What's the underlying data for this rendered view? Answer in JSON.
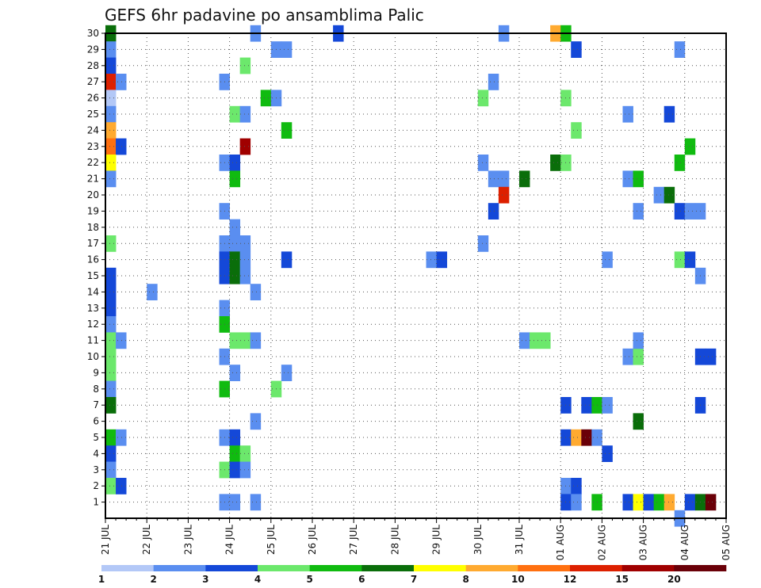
{
  "chart_data": {
    "type": "heatmap",
    "title": "GEFS 6hr padavine po ansamblima Palic",
    "xlabel": "",
    "ylabel": "",
    "x_range": [
      0,
      60
    ],
    "y_range": [
      0,
      30
    ],
    "x_ticks": [
      {
        "x": 0,
        "label": "21 JUL"
      },
      {
        "x": 4,
        "label": "22 JUL"
      },
      {
        "x": 8,
        "label": "23 JUL"
      },
      {
        "x": 12,
        "label": "24 JUL"
      },
      {
        "x": 16,
        "label": "25 JUL"
      },
      {
        "x": 20,
        "label": "26 JUL"
      },
      {
        "x": 24,
        "label": "27 JUL"
      },
      {
        "x": 28,
        "label": "28 JUL"
      },
      {
        "x": 32,
        "label": "29 JUL"
      },
      {
        "x": 36,
        "label": "30 JUL"
      },
      {
        "x": 40,
        "label": "31 JUL"
      },
      {
        "x": 44,
        "label": "01 AUG"
      },
      {
        "x": 48,
        "label": "02 AUG"
      },
      {
        "x": 52,
        "label": "03 AUG"
      },
      {
        "x": 56,
        "label": "04 AUG"
      },
      {
        "x": 60,
        "label": "05 AUG"
      }
    ],
    "y_ticks": [
      1,
      2,
      3,
      4,
      5,
      6,
      7,
      8,
      9,
      10,
      11,
      12,
      13,
      14,
      15,
      16,
      17,
      18,
      19,
      20,
      21,
      22,
      23,
      24,
      25,
      26,
      27,
      28,
      29,
      30
    ],
    "grid": true,
    "colorbar": {
      "labels": [
        "1",
        "2",
        "3",
        "4",
        "5",
        "6",
        "7",
        "8",
        "10",
        "12",
        "15",
        "20"
      ],
      "colors": [
        "#b3c8f7",
        "#5a8ef0",
        "#1448d8",
        "#6ce86c",
        "#10bb10",
        "#0a6e0a",
        "#ffff00",
        "#ffaa30",
        "#ff7010",
        "#dd2000",
        "#a00000",
        "#6a0008"
      ]
    },
    "cells": [
      [
        0,
        30,
        5
      ],
      [
        0,
        29,
        1
      ],
      [
        0,
        28,
        2
      ],
      [
        0,
        27,
        9
      ],
      [
        1,
        27,
        1
      ],
      [
        0,
        26,
        0
      ],
      [
        0,
        25,
        1
      ],
      [
        0,
        24,
        7
      ],
      [
        0,
        23,
        8
      ],
      [
        1,
        23,
        2
      ],
      [
        0,
        22,
        6
      ],
      [
        0,
        21,
        1
      ],
      [
        0,
        17,
        3
      ],
      [
        0,
        15,
        2
      ],
      [
        0,
        14,
        2
      ],
      [
        0,
        13,
        2
      ],
      [
        0,
        12,
        1
      ],
      [
        0,
        11,
        3
      ],
      [
        1,
        11,
        1
      ],
      [
        0,
        10,
        3
      ],
      [
        0,
        9,
        3
      ],
      [
        0,
        8,
        1
      ],
      [
        0,
        7,
        5
      ],
      [
        0,
        5,
        4
      ],
      [
        1,
        5,
        1
      ],
      [
        0,
        4,
        2
      ],
      [
        0,
        3,
        1
      ],
      [
        0,
        2,
        3
      ],
      [
        1,
        2,
        2
      ],
      [
        4,
        14,
        1
      ],
      [
        11,
        5,
        1
      ],
      [
        11,
        27,
        1
      ],
      [
        11,
        22,
        1
      ],
      [
        12,
        22,
        2
      ],
      [
        12,
        21,
        4
      ],
      [
        11,
        19,
        1
      ],
      [
        12,
        18,
        1
      ],
      [
        11,
        17,
        1
      ],
      [
        12,
        17,
        1
      ],
      [
        13,
        17,
        1
      ],
      [
        11,
        16,
        2
      ],
      [
        12,
        16,
        5
      ],
      [
        13,
        16,
        1
      ],
      [
        11,
        15,
        2
      ],
      [
        12,
        15,
        5
      ],
      [
        13,
        15,
        1
      ],
      [
        11,
        13,
        1
      ],
      [
        11,
        12,
        4
      ],
      [
        12,
        11,
        3
      ],
      [
        13,
        11,
        3
      ],
      [
        11,
        10,
        1
      ],
      [
        12,
        9,
        1
      ],
      [
        11,
        8,
        4
      ],
      [
        12,
        5,
        2
      ],
      [
        12,
        4,
        4
      ],
      [
        13,
        4,
        3
      ],
      [
        11,
        3,
        3
      ],
      [
        12,
        3,
        2
      ],
      [
        13,
        3,
        1
      ],
      [
        11,
        1,
        1
      ],
      [
        12,
        1,
        1
      ],
      [
        13,
        28,
        3
      ],
      [
        13,
        23,
        10
      ],
      [
        12,
        25,
        3
      ],
      [
        13,
        25,
        1
      ],
      [
        14,
        30,
        1
      ],
      [
        14,
        14,
        1
      ],
      [
        14,
        11,
        1
      ],
      [
        14,
        6,
        1
      ],
      [
        14,
        1,
        1
      ],
      [
        15,
        26,
        4
      ],
      [
        16,
        26,
        1
      ],
      [
        16,
        29,
        1
      ],
      [
        17,
        29,
        1
      ],
      [
        17,
        24,
        4
      ],
      [
        17,
        16,
        2
      ],
      [
        16,
        8,
        3
      ],
      [
        17,
        9,
        1
      ],
      [
        22,
        30,
        2
      ],
      [
        31,
        16,
        1
      ],
      [
        32,
        16,
        2
      ],
      [
        36,
        26,
        3
      ],
      [
        36,
        22,
        1
      ],
      [
        36,
        17,
        1
      ],
      [
        37,
        27,
        1
      ],
      [
        37,
        21,
        1
      ],
      [
        38,
        21,
        1
      ],
      [
        37,
        19,
        2
      ],
      [
        38,
        20,
        9
      ],
      [
        38,
        30,
        1
      ],
      [
        40,
        21,
        5
      ],
      [
        40,
        11,
        1
      ],
      [
        41,
        11,
        3
      ],
      [
        42,
        11,
        3
      ],
      [
        43,
        22,
        5
      ],
      [
        43,
        30,
        7
      ],
      [
        44,
        30,
        4
      ],
      [
        44,
        26,
        3
      ],
      [
        44,
        22,
        3
      ],
      [
        45,
        29,
        2
      ],
      [
        45,
        24,
        3
      ],
      [
        44,
        7,
        2
      ],
      [
        44,
        5,
        2
      ],
      [
        44,
        2,
        1
      ],
      [
        45,
        2,
        2
      ],
      [
        44,
        1,
        2
      ],
      [
        45,
        1,
        1
      ],
      [
        45,
        5,
        7
      ],
      [
        46,
        5,
        11
      ],
      [
        46,
        7,
        2
      ],
      [
        47,
        7,
        4
      ],
      [
        47,
        5,
        1
      ],
      [
        47,
        1,
        4
      ],
      [
        48,
        7,
        1
      ],
      [
        48,
        4,
        2
      ],
      [
        48,
        16,
        1
      ],
      [
        50,
        25,
        1
      ],
      [
        50,
        21,
        1
      ],
      [
        51,
        21,
        4
      ],
      [
        50,
        10,
        1
      ],
      [
        51,
        10,
        3
      ],
      [
        51,
        11,
        1
      ],
      [
        51,
        19,
        1
      ],
      [
        51,
        6,
        5
      ],
      [
        50,
        1,
        2
      ],
      [
        51,
        1,
        6
      ],
      [
        52,
        1,
        2
      ],
      [
        53,
        1,
        4
      ],
      [
        54,
        1,
        7
      ],
      [
        53,
        20,
        1
      ],
      [
        54,
        20,
        5
      ],
      [
        54,
        25,
        2
      ],
      [
        55,
        29,
        1
      ],
      [
        55,
        22,
        4
      ],
      [
        55,
        19,
        2
      ],
      [
        55,
        16,
        3
      ],
      [
        56,
        16,
        2
      ],
      [
        56,
        19,
        1
      ],
      [
        57,
        19,
        1
      ],
      [
        55,
        0,
        1
      ],
      [
        56,
        1,
        2
      ],
      [
        57,
        1,
        5
      ],
      [
        58,
        1,
        11
      ],
      [
        57,
        15,
        1
      ],
      [
        56,
        23,
        4
      ],
      [
        58,
        10,
        2
      ],
      [
        57,
        10,
        2
      ],
      [
        57,
        7,
        2
      ]
    ]
  }
}
